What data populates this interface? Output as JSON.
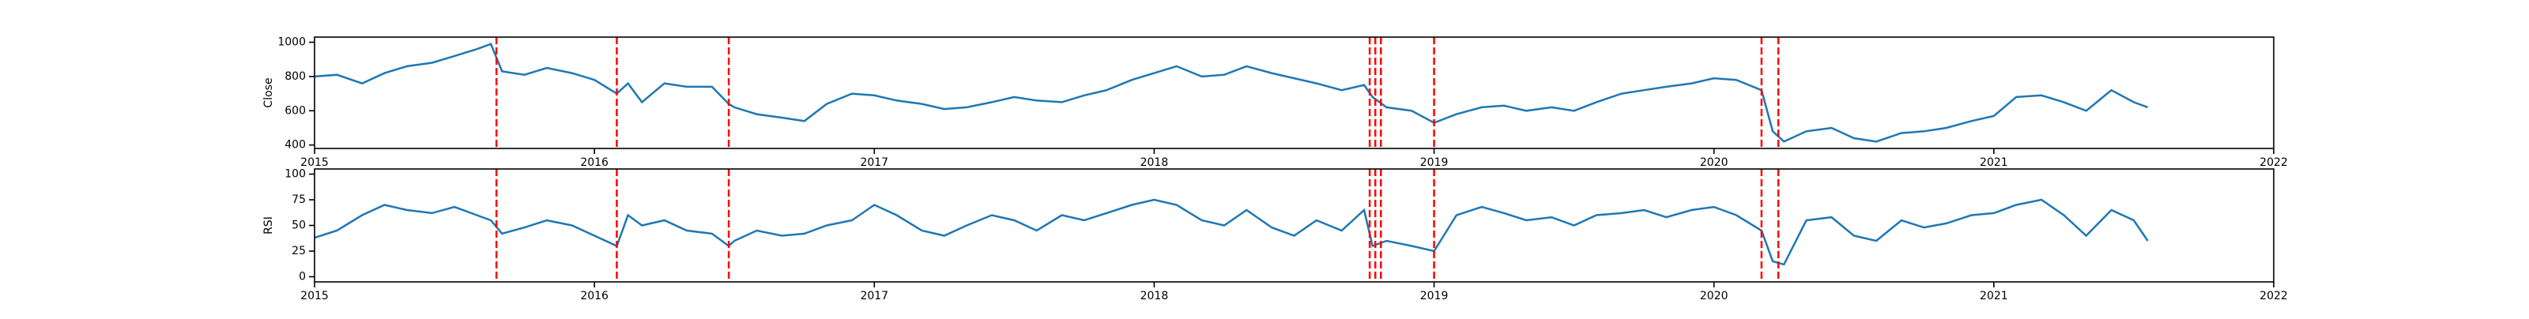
{
  "chart_data": [
    {
      "type": "line",
      "ylabel": "Close",
      "x": [
        2015.0,
        2015.08,
        2015.17,
        2015.25,
        2015.33,
        2015.42,
        2015.5,
        2015.58,
        2015.63,
        2015.67,
        2015.75,
        2015.83,
        2015.92,
        2016.0,
        2016.08,
        2016.12,
        2016.17,
        2016.25,
        2016.33,
        2016.42,
        2016.48,
        2016.5,
        2016.58,
        2016.67,
        2016.75,
        2016.83,
        2016.92,
        2017.0,
        2017.08,
        2017.17,
        2017.25,
        2017.33,
        2017.42,
        2017.5,
        2017.58,
        2017.67,
        2017.75,
        2017.83,
        2017.92,
        2018.0,
        2018.08,
        2018.17,
        2018.25,
        2018.33,
        2018.42,
        2018.5,
        2018.58,
        2018.67,
        2018.75,
        2018.78,
        2018.83,
        2018.92,
        2019.0,
        2019.08,
        2019.17,
        2019.25,
        2019.33,
        2019.42,
        2019.5,
        2019.58,
        2019.67,
        2019.75,
        2019.83,
        2019.92,
        2020.0,
        2020.08,
        2020.17,
        2020.21,
        2020.25,
        2020.33,
        2020.42,
        2020.5,
        2020.58,
        2020.67,
        2020.75,
        2020.83,
        2020.92,
        2021.0,
        2021.08,
        2021.17,
        2021.25,
        2021.33,
        2021.42,
        2021.5,
        2021.55
      ],
      "values": [
        800,
        810,
        760,
        820,
        860,
        880,
        920,
        960,
        990,
        830,
        810,
        850,
        820,
        780,
        700,
        760,
        650,
        760,
        740,
        740,
        640,
        620,
        580,
        560,
        540,
        640,
        700,
        690,
        660,
        640,
        610,
        620,
        650,
        680,
        660,
        650,
        690,
        720,
        780,
        820,
        860,
        800,
        810,
        860,
        820,
        790,
        760,
        720,
        750,
        680,
        620,
        600,
        530,
        580,
        620,
        630,
        600,
        620,
        600,
        650,
        700,
        720,
        740,
        760,
        790,
        780,
        720,
        480,
        420,
        480,
        500,
        440,
        420,
        470,
        480,
        500,
        540,
        570,
        680,
        690,
        650,
        600,
        720,
        650,
        620
      ],
      "color": "#1f77b4",
      "vlines": [
        2015.65,
        2016.08,
        2016.48,
        2018.77,
        2018.79,
        2018.81,
        2019.0,
        2020.17,
        2020.23
      ],
      "vline_color": "#ff0000",
      "xlim": [
        2015,
        2022
      ],
      "xticks": [
        2015,
        2016,
        2017,
        2018,
        2019,
        2020,
        2021,
        2022
      ],
      "ylim": [
        380,
        1030
      ],
      "yticks": [
        400,
        600,
        800,
        1000
      ]
    },
    {
      "type": "line",
      "ylabel": "RSI",
      "x": [
        2015.0,
        2015.08,
        2015.17,
        2015.25,
        2015.33,
        2015.42,
        2015.5,
        2015.58,
        2015.63,
        2015.67,
        2015.75,
        2015.83,
        2015.92,
        2016.0,
        2016.08,
        2016.12,
        2016.17,
        2016.25,
        2016.33,
        2016.42,
        2016.48,
        2016.5,
        2016.58,
        2016.67,
        2016.75,
        2016.83,
        2016.92,
        2017.0,
        2017.08,
        2017.17,
        2017.25,
        2017.33,
        2017.42,
        2017.5,
        2017.58,
        2017.67,
        2017.75,
        2017.83,
        2017.92,
        2018.0,
        2018.08,
        2018.17,
        2018.25,
        2018.33,
        2018.42,
        2018.5,
        2018.58,
        2018.67,
        2018.75,
        2018.78,
        2018.83,
        2018.92,
        2019.0,
        2019.08,
        2019.17,
        2019.25,
        2019.33,
        2019.42,
        2019.5,
        2019.58,
        2019.67,
        2019.75,
        2019.83,
        2019.92,
        2020.0,
        2020.08,
        2020.17,
        2020.21,
        2020.25,
        2020.33,
        2020.42,
        2020.5,
        2020.58,
        2020.67,
        2020.75,
        2020.83,
        2020.92,
        2021.0,
        2021.08,
        2021.17,
        2021.25,
        2021.33,
        2021.42,
        2021.5,
        2021.55
      ],
      "values": [
        38,
        45,
        60,
        70,
        65,
        62,
        68,
        60,
        55,
        42,
        48,
        55,
        50,
        40,
        30,
        60,
        50,
        55,
        45,
        42,
        30,
        35,
        45,
        40,
        42,
        50,
        55,
        70,
        60,
        45,
        40,
        50,
        60,
        55,
        45,
        60,
        55,
        62,
        70,
        75,
        70,
        55,
        50,
        65,
        48,
        40,
        55,
        45,
        65,
        30,
        35,
        30,
        25,
        60,
        68,
        62,
        55,
        58,
        50,
        60,
        62,
        65,
        58,
        65,
        68,
        60,
        45,
        15,
        12,
        55,
        58,
        40,
        35,
        55,
        48,
        52,
        60,
        62,
        70,
        75,
        60,
        40,
        65,
        55,
        35
      ],
      "color": "#1f77b4",
      "vlines": [
        2015.65,
        2016.08,
        2016.48,
        2018.77,
        2018.79,
        2018.81,
        2019.0,
        2020.17,
        2020.23
      ],
      "vline_color": "#ff0000",
      "xlim": [
        2015,
        2022
      ],
      "xticks": [
        2015,
        2016,
        2017,
        2018,
        2019,
        2020,
        2021,
        2022
      ],
      "ylim": [
        -5,
        105
      ],
      "yticks": [
        0,
        25,
        50,
        75,
        100
      ]
    }
  ]
}
